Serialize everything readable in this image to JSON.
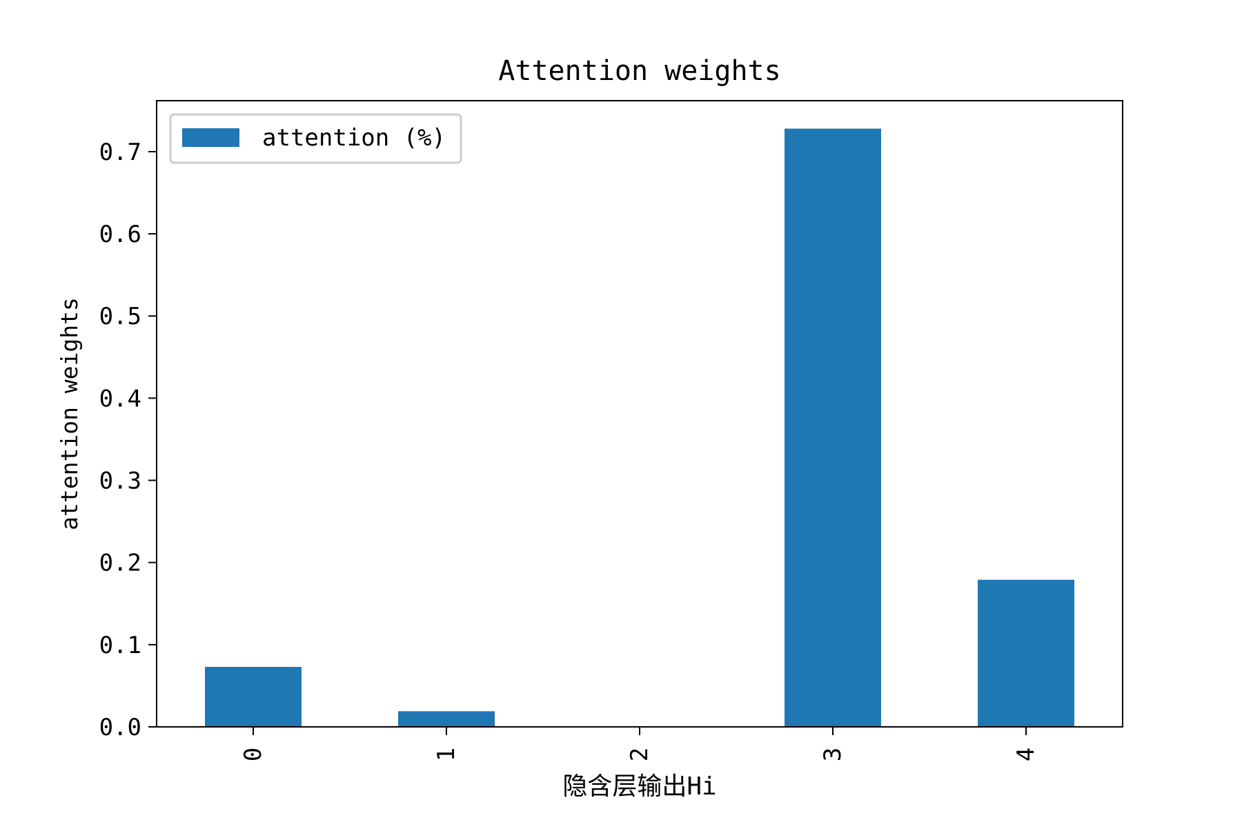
{
  "chart_data": {
    "type": "bar",
    "title": "Attention weights",
    "xlabel": "隐含层输出Hi",
    "ylabel": "attention weights",
    "categories": [
      "0",
      "1",
      "2",
      "3",
      "4"
    ],
    "series": [
      {
        "name": "attention (%)",
        "values": [
          0.073,
          0.019,
          0.0,
          0.728,
          0.179
        ]
      }
    ],
    "ylim": [
      0,
      0.762
    ],
    "yticks": [
      0.0,
      0.1,
      0.2,
      0.3,
      0.4,
      0.5,
      0.6,
      0.7
    ],
    "ytick_labels": [
      "0.0",
      "0.1",
      "0.2",
      "0.3",
      "0.4",
      "0.5",
      "0.6",
      "0.7"
    ],
    "xtick_rotation": "vertical",
    "grid": false,
    "legend_position": "upper-left",
    "colors": {
      "bar": "#1f77b4",
      "axes": "#000000",
      "legend_border": "#cccccc"
    }
  }
}
